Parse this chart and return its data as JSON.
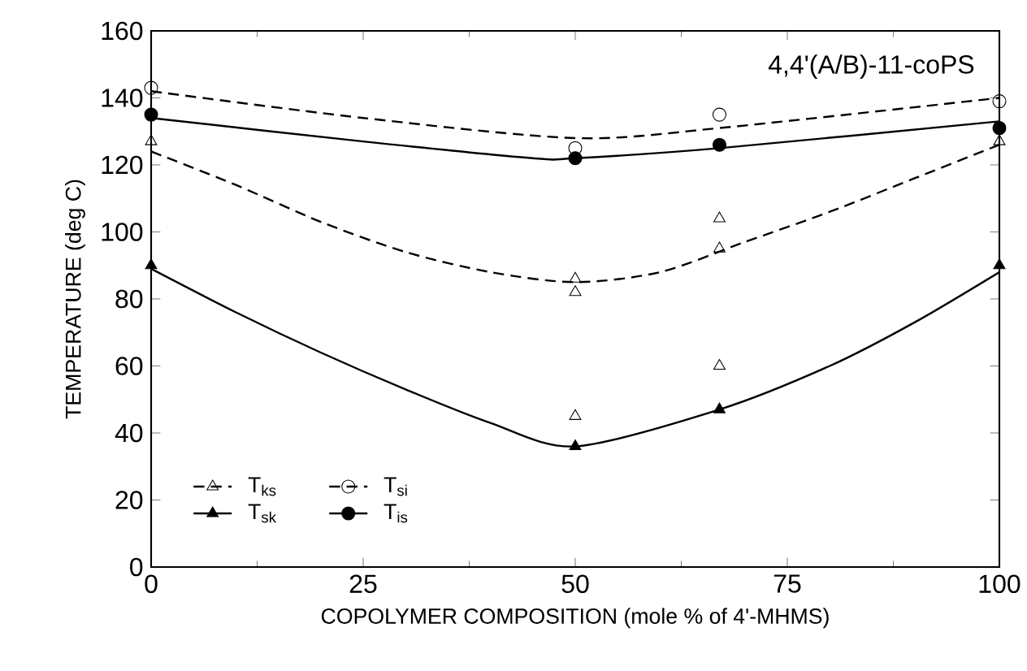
{
  "chart_data": {
    "type": "scatter",
    "xlabel": "COPOLYMER COMPOSITION (mole % of 4'-MHMS)",
    "ylabel": "TEMPERATURE (deg C)",
    "annotations": [
      "4,4'(A/B)-11-coPS"
    ],
    "xlim": [
      0,
      100
    ],
    "ylim": [
      0,
      160
    ],
    "xticks": [
      0,
      25,
      50,
      75,
      100
    ],
    "yticks": [
      0,
      20,
      40,
      60,
      80,
      100,
      120,
      140,
      160
    ],
    "grid": false,
    "legend": "bottom left",
    "series": [
      {
        "name": "T$_{ks}$",
        "marker": "triangle",
        "line_style": "dashed",
        "color": "#000000",
        "x": [
          0,
          50,
          50,
          50,
          67,
          67,
          67,
          100
        ],
        "values": [
          127,
          86,
          82,
          45,
          104,
          95,
          60,
          127
        ]
      },
      {
        "name": "T$_{si}$",
        "marker": "circle",
        "line_style": "dashed",
        "color": "#000000",
        "x": [
          0,
          50,
          67,
          100
        ],
        "values": [
          143,
          125,
          135,
          139
        ]
      },
      {
        "name": "T$_{sk}$",
        "marker": "triangle",
        "line_style": "solid",
        "color": "#000000",
        "x": [
          0,
          50,
          67,
          100
        ],
        "values": [
          90,
          36,
          47,
          90
        ]
      },
      {
        "name": "T$_{is}$",
        "marker": "circle",
        "line_style": "solid",
        "color": "#000000",
        "x": [
          0,
          50,
          67,
          100
        ],
        "values": [
          135,
          122,
          126,
          131
        ]
      },
      {
        "type": "line",
        "line_style": "dashed",
        "color": "#000000",
        "x": [
          0,
          10,
          20,
          30,
          40,
          50,
          60,
          70,
          80,
          90,
          100
        ],
        "values": [
          124,
          114,
          103,
          94,
          88,
          85,
          88,
          97,
          106,
          116,
          126
        ]
      },
      {
        "type": "line",
        "line_style": "dashed",
        "color": "#000000",
        "x": [
          0,
          25,
          50,
          67,
          100
        ],
        "values": [
          142,
          134,
          128,
          131,
          140
        ]
      },
      {
        "type": "line",
        "line_style": "solid",
        "color": "#000000",
        "x": [
          0,
          10,
          20,
          30,
          40,
          50,
          67,
          80,
          90,
          100
        ],
        "values": [
          89,
          76,
          64,
          53,
          43,
          36,
          47,
          60,
          73,
          88
        ]
      },
      {
        "type": "line",
        "line_style": "solid",
        "color": "#000000",
        "x": [
          0,
          25,
          45,
          50,
          67,
          100
        ],
        "values": [
          134,
          127,
          122,
          122,
          125,
          133
        ]
      }
    ]
  }
}
